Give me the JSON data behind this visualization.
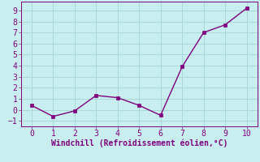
{
  "x": [
    0,
    1,
    2,
    3,
    4,
    5,
    6,
    7,
    8,
    9,
    10
  ],
  "y": [
    0.4,
    -0.6,
    -0.1,
    1.3,
    1.1,
    0.4,
    -0.5,
    3.9,
    7.0,
    7.7,
    9.2
  ],
  "line_color": "#800080",
  "marker": "s",
  "marker_size": 2.5,
  "line_width": 1.0,
  "xlabel": "Windchill (Refroidissement éolien,°C)",
  "xlabel_color": "#800080",
  "xlabel_fontsize": 7,
  "tick_color": "#800080",
  "tick_fontsize": 7,
  "xlim": [
    -0.5,
    10.5
  ],
  "ylim": [
    -1.5,
    9.8
  ],
  "yticks": [
    -1,
    0,
    1,
    2,
    3,
    4,
    5,
    6,
    7,
    8,
    9
  ],
  "xticks": [
    0,
    1,
    2,
    3,
    4,
    5,
    6,
    7,
    8,
    9,
    10
  ],
  "bg_color": "#c8eef0",
  "grid_color": "#a8d8d8",
  "spine_color": "#800080"
}
